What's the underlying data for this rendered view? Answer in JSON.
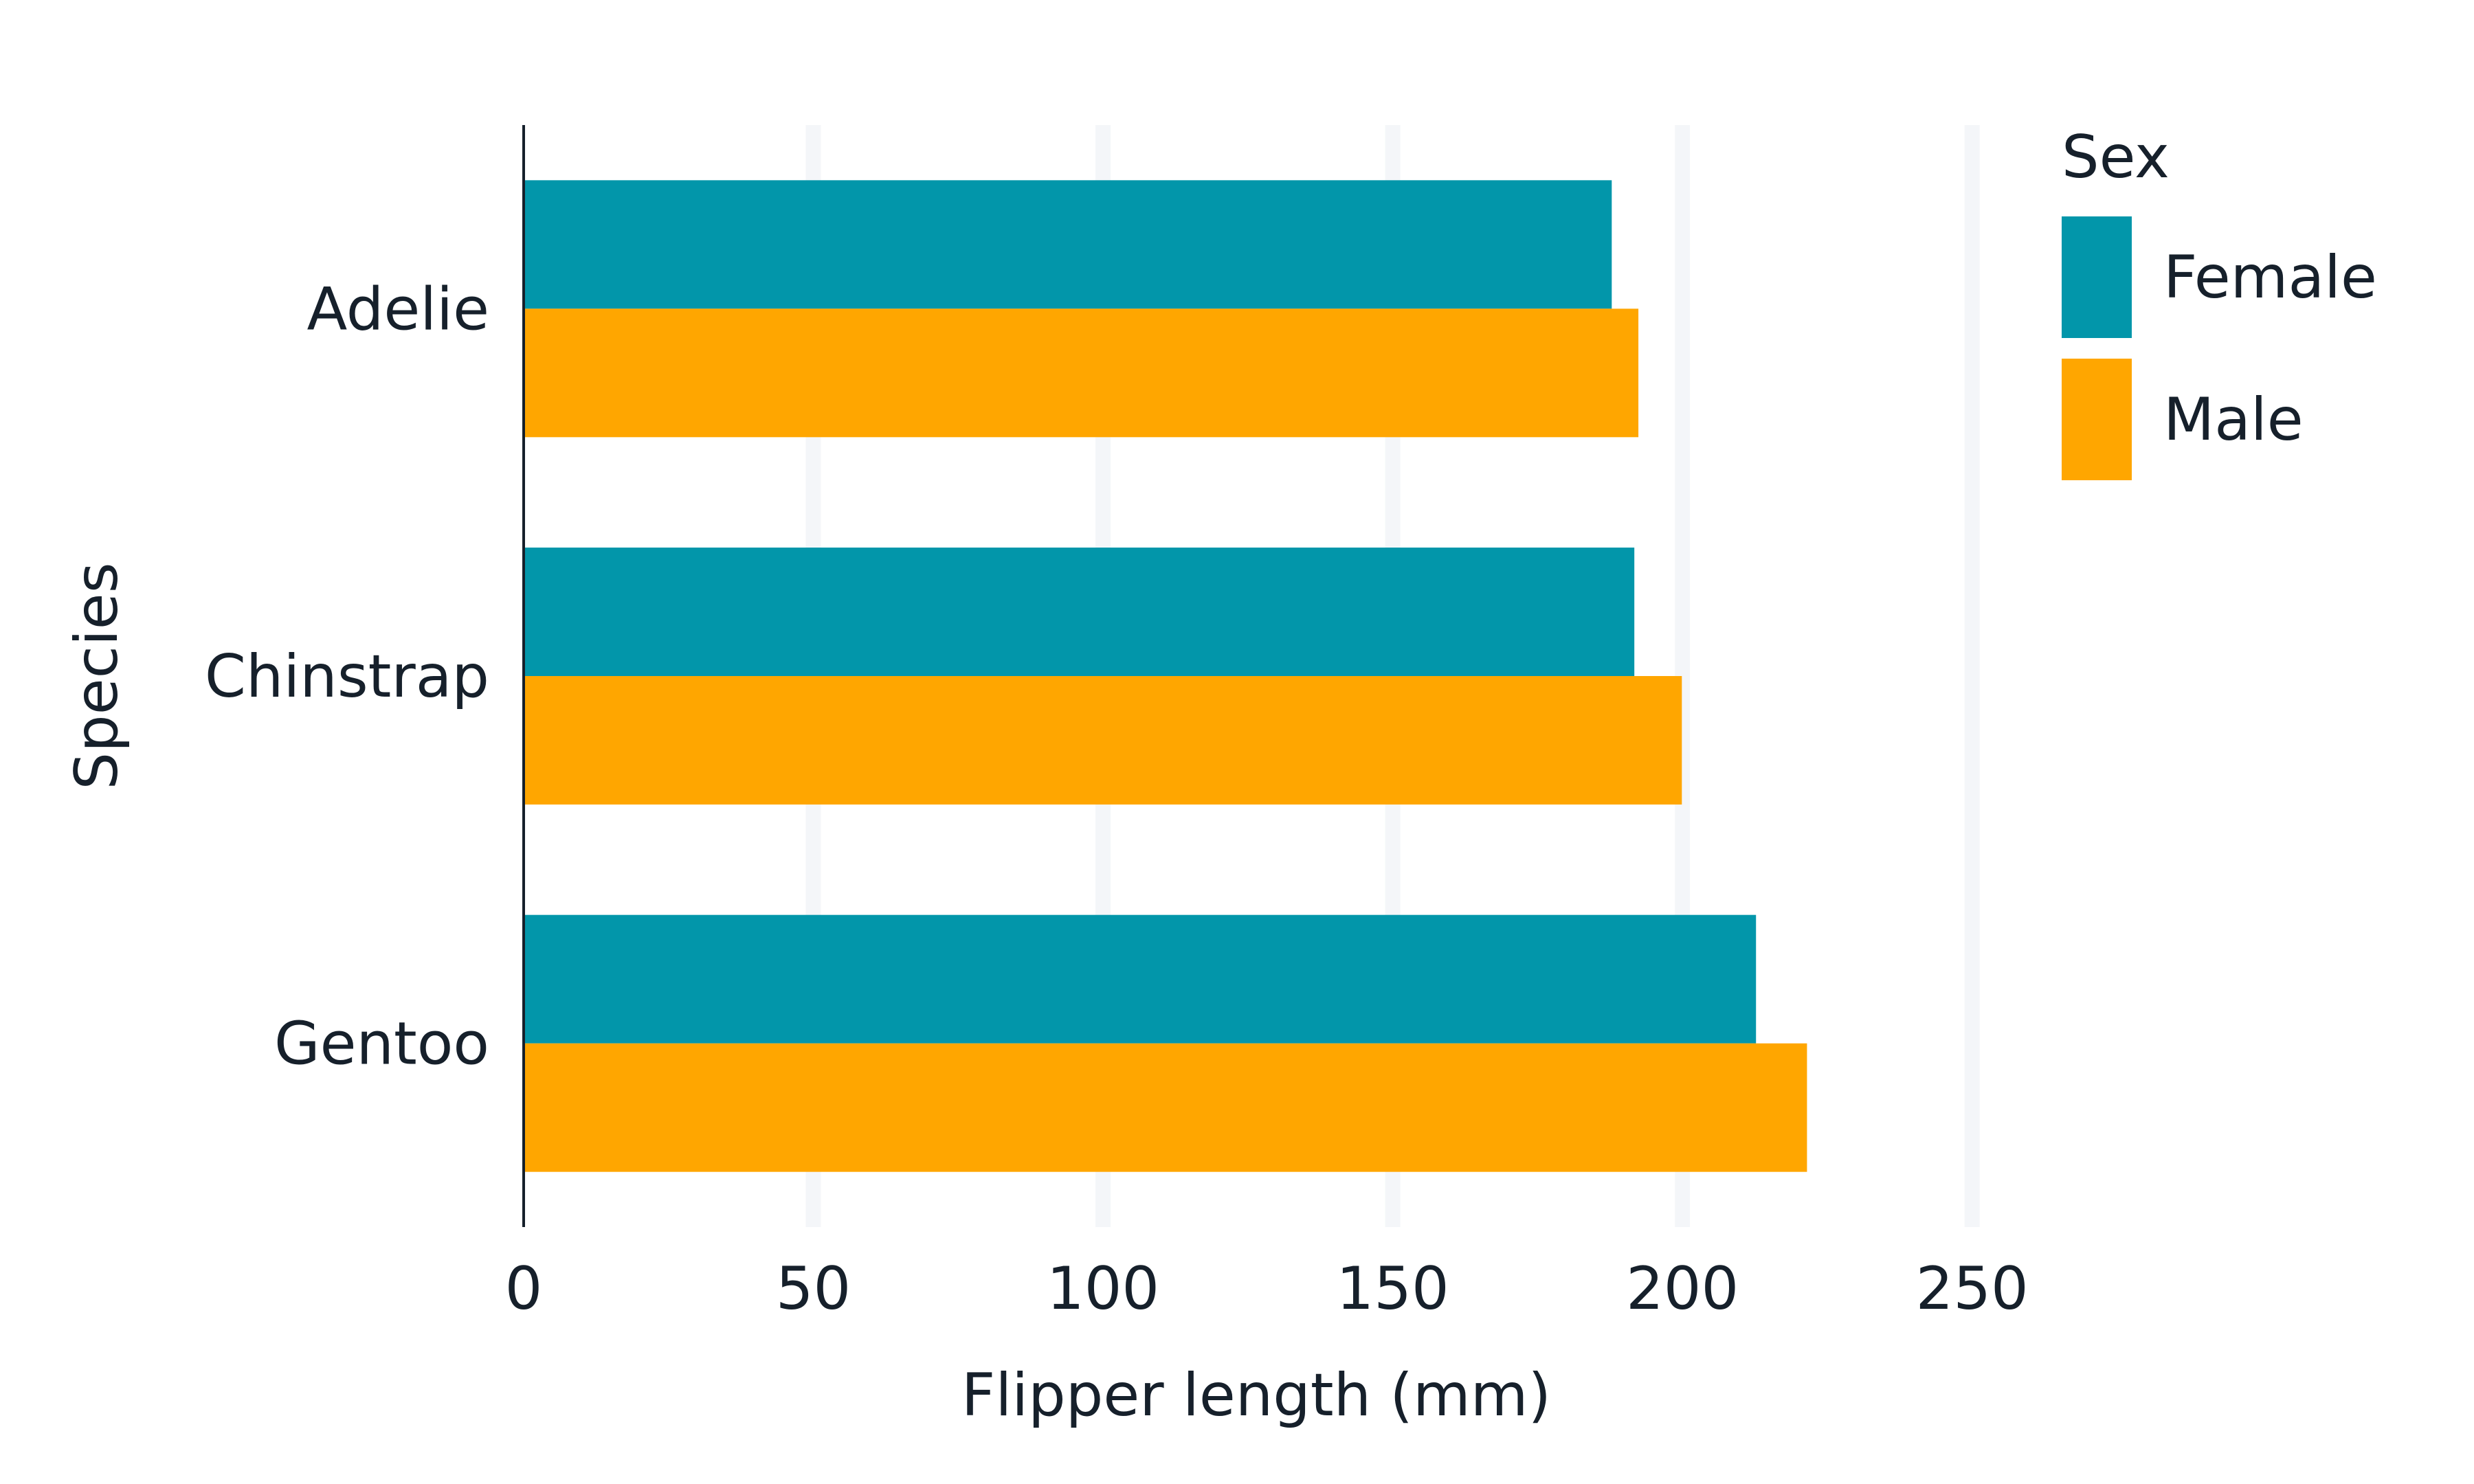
{
  "chart_data": {
    "type": "bar",
    "orientation": "horizontal",
    "categories": [
      "Adelie",
      "Chinstrap",
      "Gentoo"
    ],
    "series": [
      {
        "name": "Female",
        "color": "#0296aa",
        "values": [
          187.8,
          191.7,
          212.7
        ]
      },
      {
        "name": "Male",
        "color": "#ffa600",
        "values": [
          192.4,
          199.9,
          221.5
        ]
      }
    ],
    "title": "",
    "xlabel": "Flipper length (mm)",
    "ylabel": "Species",
    "xlim": [
      0,
      260
    ],
    "xticks": [
      0,
      50,
      100,
      150,
      200,
      250
    ],
    "grid": "vertical",
    "legend": {
      "title": "Sex",
      "placement": "right"
    },
    "colors": {
      "text": "#16202b",
      "grid": "#f4f6f9",
      "axis": "#16202b"
    }
  }
}
